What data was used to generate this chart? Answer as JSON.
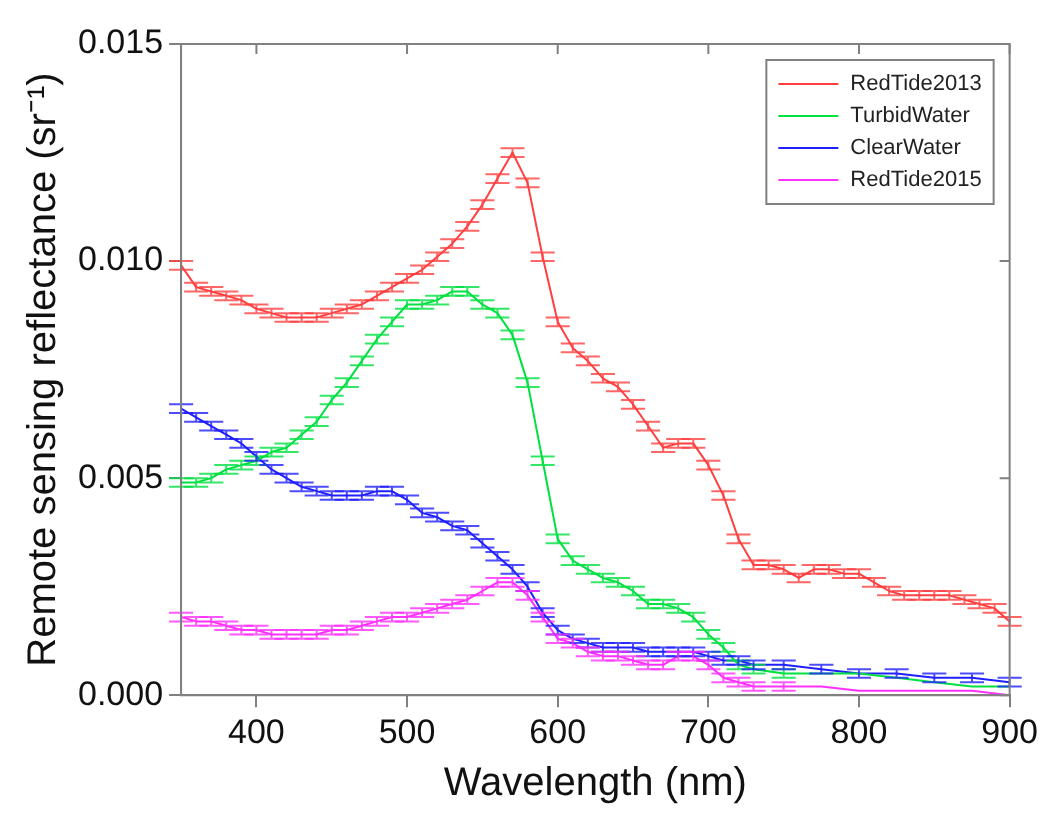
{
  "chart_data": {
    "type": "line",
    "xlabel": "Wavelength (nm)",
    "ylabel": "Remote sensing reflectance (sr⁻¹)",
    "xlim": [
      350,
      900
    ],
    "xticks": [
      400,
      500,
      600,
      700,
      800,
      900
    ],
    "ylim": [
      0,
      0.015
    ],
    "yticks": [
      {
        "value": 0,
        "label": "0.000"
      },
      {
        "value": 0.005,
        "label": "0.005"
      },
      {
        "value": 0.01,
        "label": "0.010"
      },
      {
        "value": 0.015,
        "label": "0.015"
      }
    ],
    "legend": "top right",
    "marker": "none",
    "line_style": "solid",
    "grid": false,
    "series": [
      {
        "name": "RedTide2013",
        "color": "#ff4040",
        "x": [
          350,
          360,
          370,
          380,
          390,
          400,
          410,
          420,
          430,
          440,
          450,
          460,
          470,
          480,
          490,
          500,
          510,
          520,
          530,
          540,
          550,
          560,
          570,
          580,
          590,
          600,
          610,
          620,
          630,
          640,
          650,
          660,
          670,
          680,
          690,
          700,
          710,
          720,
          730,
          740,
          750,
          760,
          770,
          780,
          790,
          800,
          810,
          820,
          830,
          840,
          850,
          860,
          870,
          880,
          890,
          900
        ],
        "values": [
          0.0099,
          0.0094,
          0.0093,
          0.0092,
          0.0091,
          0.0089,
          0.0088,
          0.0087,
          0.0087,
          0.0087,
          0.0088,
          0.0089,
          0.009,
          0.0092,
          0.0094,
          0.0096,
          0.0098,
          0.0101,
          0.0104,
          0.0108,
          0.0113,
          0.0119,
          0.0125,
          0.0118,
          0.0101,
          0.0086,
          0.008,
          0.0077,
          0.0073,
          0.0071,
          0.0067,
          0.0062,
          0.0057,
          0.0058,
          0.0058,
          0.0053,
          0.0046,
          0.0036,
          0.003,
          0.003,
          0.0029,
          0.0027,
          0.0029,
          0.0029,
          0.0028,
          0.0028,
          0.0026,
          0.0024,
          0.0023,
          0.0023,
          0.0023,
          0.0023,
          0.0022,
          0.0021,
          0.002,
          0.0017
        ],
        "errors": [
          0.0001,
          0.0001,
          0.0001,
          0.0001,
          0.0001,
          0.0001,
          0.0001,
          0.0001,
          0.0001,
          0.0001,
          0.0001,
          0.0001,
          0.0001,
          0.0001,
          0.0001,
          0.0001,
          0.0001,
          0.0001,
          0.0001,
          0.0001,
          0.0001,
          0.0001,
          0.0001,
          0.0001,
          0.0001,
          0.0001,
          0.0001,
          0.0001,
          0.0001,
          0.0001,
          0.0001,
          0.0001,
          0.0001,
          0.0001,
          0.0001,
          0.0001,
          0.0001,
          0.0001,
          0.0001,
          0.0001,
          0.0001,
          0.0001,
          0.0001,
          0.0001,
          0.0001,
          0.0001,
          0.0001,
          0.0001,
          0.0001,
          0.0001,
          0.0001,
          0.0001,
          0.0001,
          0.0001,
          0.0001,
          0.0001
        ]
      },
      {
        "name": "TurbidWater",
        "color": "#00e040",
        "x": [
          350,
          360,
          370,
          380,
          390,
          400,
          410,
          420,
          430,
          440,
          450,
          460,
          470,
          480,
          490,
          500,
          510,
          520,
          530,
          540,
          550,
          560,
          570,
          580,
          590,
          600,
          610,
          620,
          630,
          640,
          650,
          660,
          670,
          680,
          690,
          700,
          710,
          720,
          730,
          750,
          775,
          800,
          825,
          850,
          875,
          900
        ],
        "values": [
          0.0049,
          0.0049,
          0.005,
          0.0052,
          0.0053,
          0.0054,
          0.0056,
          0.0057,
          0.006,
          0.0063,
          0.0068,
          0.0072,
          0.0077,
          0.0082,
          0.0086,
          0.009,
          0.009,
          0.0091,
          0.0093,
          0.0093,
          0.009,
          0.0088,
          0.0083,
          0.0072,
          0.0054,
          0.0036,
          0.0031,
          0.0029,
          0.0027,
          0.0026,
          0.0024,
          0.0021,
          0.0021,
          0.002,
          0.0018,
          0.0014,
          0.0011,
          0.0007,
          0.0006,
          0.0005,
          0.0005,
          0.0005,
          0.0004,
          0.0003,
          0.0002,
          0.0002
        ],
        "errors": [
          0.0001,
          0.0001,
          0.0001,
          0.0001,
          0.0001,
          0.0001,
          0.0001,
          0.0001,
          0.0001,
          0.0001,
          0.0001,
          0.0001,
          0.0001,
          0.0001,
          0.0001,
          0.0001,
          0.0001,
          0.0001,
          0.0001,
          0.0001,
          0.0001,
          0.0001,
          0.0001,
          0.0001,
          0.0001,
          0.0001,
          0.0001,
          0.0001,
          0.0001,
          0.0001,
          0.0001,
          0.0001,
          0.0001,
          0.0001,
          0.0001,
          0.0001,
          0.0001,
          0.0001,
          0.0001,
          0.0001,
          null,
          null,
          null,
          null,
          null,
          null
        ]
      },
      {
        "name": "ClearWater",
        "color": "#2020ff",
        "x": [
          350,
          360,
          370,
          380,
          390,
          400,
          410,
          420,
          430,
          440,
          450,
          460,
          470,
          480,
          490,
          500,
          510,
          520,
          530,
          540,
          550,
          560,
          570,
          580,
          590,
          600,
          610,
          620,
          630,
          640,
          650,
          660,
          670,
          680,
          690,
          700,
          710,
          720,
          730,
          750,
          775,
          800,
          825,
          850,
          875,
          900
        ],
        "values": [
          0.0066,
          0.0064,
          0.0062,
          0.006,
          0.0058,
          0.0055,
          0.0052,
          0.005,
          0.0048,
          0.0047,
          0.0046,
          0.0046,
          0.0046,
          0.0047,
          0.0047,
          0.0045,
          0.0042,
          0.0041,
          0.0039,
          0.0038,
          0.0035,
          0.0032,
          0.0029,
          0.0025,
          0.0019,
          0.0015,
          0.0013,
          0.0012,
          0.0011,
          0.0011,
          0.0011,
          0.001,
          0.001,
          0.001,
          0.001,
          0.0009,
          0.0008,
          0.0008,
          0.0007,
          0.0007,
          0.0006,
          0.0005,
          0.0005,
          0.0004,
          0.0004,
          0.0003
        ],
        "errors": [
          0.0001,
          0.0001,
          0.0001,
          0.0001,
          0.0001,
          0.0001,
          0.0001,
          0.0001,
          0.0001,
          0.0001,
          0.0001,
          0.0001,
          0.0001,
          0.0001,
          0.0001,
          0.0001,
          0.0001,
          0.0001,
          0.0001,
          0.0001,
          0.0001,
          0.0001,
          0.0001,
          0.0001,
          0.0001,
          0.0001,
          0.0001,
          0.0001,
          0.0001,
          0.0001,
          0.0001,
          0.0001,
          0.0001,
          0.0001,
          0.0001,
          0.0001,
          0.0001,
          0.0001,
          0.0001,
          0.0001,
          0.0001,
          0.0001,
          0.0001,
          0.0001,
          0.0001,
          0.0001
        ]
      },
      {
        "name": "RedTide2015",
        "color": "#ff30ff",
        "x": [
          350,
          360,
          370,
          380,
          390,
          400,
          410,
          420,
          430,
          440,
          450,
          460,
          470,
          480,
          490,
          500,
          510,
          520,
          530,
          540,
          550,
          560,
          570,
          580,
          590,
          600,
          610,
          620,
          630,
          640,
          650,
          660,
          670,
          680,
          690,
          700,
          710,
          720,
          730,
          750,
          775,
          800,
          825,
          850,
          875,
          900
        ],
        "values": [
          0.0018,
          0.0017,
          0.0017,
          0.0016,
          0.0015,
          0.0015,
          0.0014,
          0.0014,
          0.0014,
          0.0014,
          0.0015,
          0.0015,
          0.0016,
          0.0017,
          0.0018,
          0.0018,
          0.0019,
          0.002,
          0.0021,
          0.0022,
          0.0024,
          0.0026,
          0.0026,
          0.0023,
          0.0018,
          0.0013,
          0.0012,
          0.001,
          0.0009,
          0.0009,
          0.0008,
          0.0007,
          0.0007,
          0.0009,
          0.0009,
          0.0007,
          0.0004,
          0.0003,
          0.0002,
          0.0002,
          0.0002,
          0.0001,
          0.0001,
          0.0001,
          0.0001,
          0
        ],
        "errors": [
          0.0001,
          0.0001,
          0.0001,
          0.0001,
          0.0001,
          0.0001,
          0.0001,
          0.0001,
          0.0001,
          0.0001,
          0.0001,
          0.0001,
          0.0001,
          0.0001,
          0.0001,
          0.0001,
          0.0001,
          0.0001,
          0.0001,
          0.0001,
          0.0001,
          0.0001,
          0.0001,
          0.0001,
          0.0001,
          0.0001,
          0.0001,
          0.0001,
          0.0001,
          0.0001,
          0.0001,
          0.0001,
          0.0001,
          0.0001,
          0.0001,
          0.0001,
          0.0001,
          0.0001,
          0.0001,
          0.0001,
          null,
          null,
          null,
          null,
          null,
          null
        ]
      }
    ]
  }
}
